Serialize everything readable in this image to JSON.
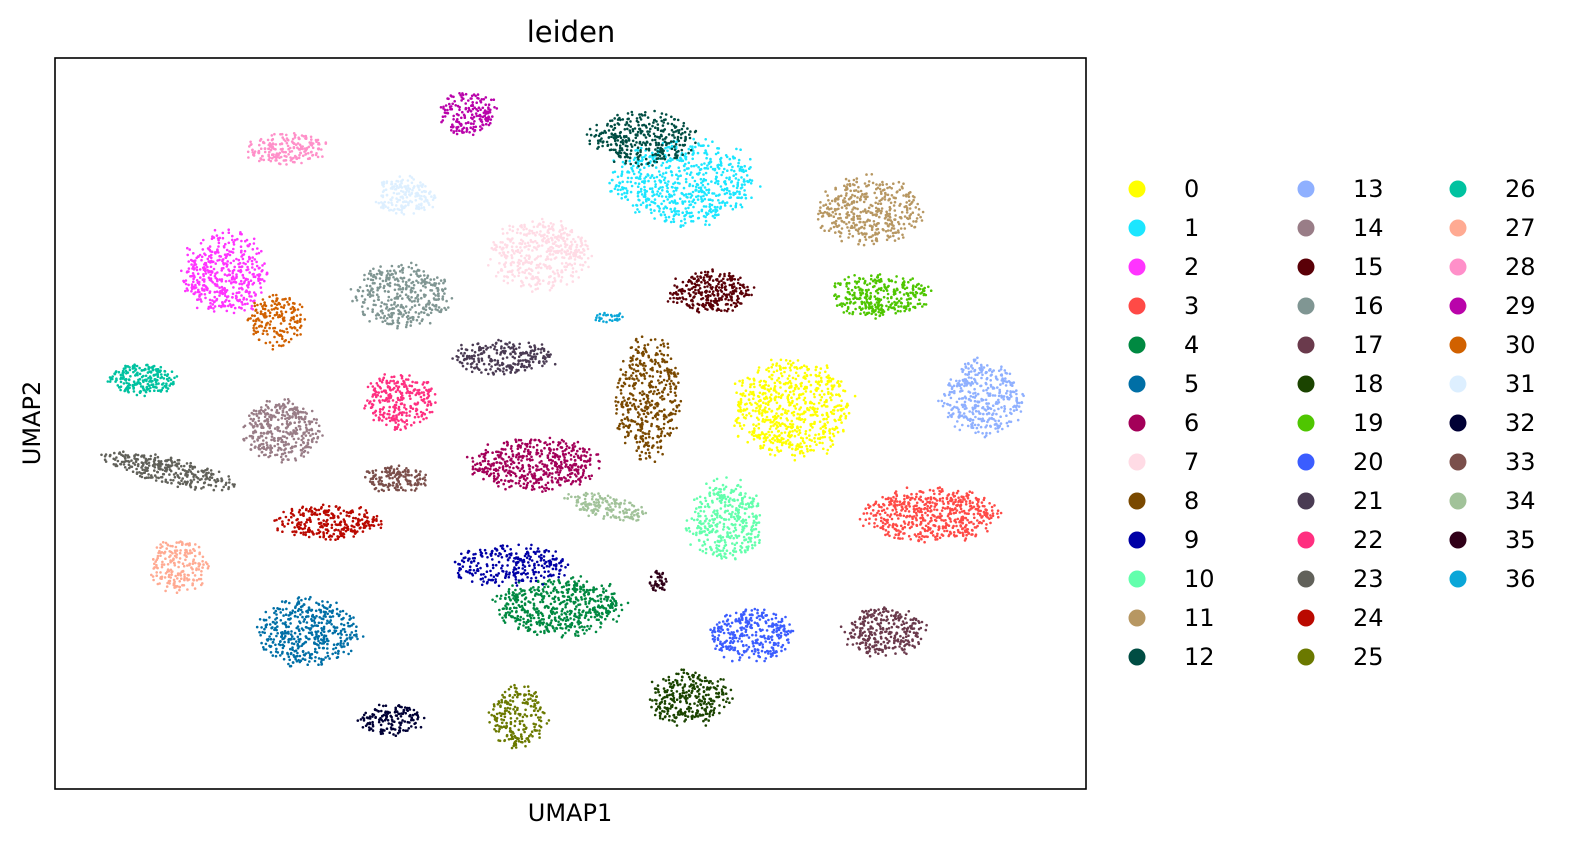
{
  "chart_data": {
    "type": "scatter",
    "title": "leiden",
    "xlabel": "UMAP1",
    "ylabel": "UMAP2",
    "xlim": [
      0,
      100
    ],
    "ylim": [
      0,
      100
    ],
    "grid": false,
    "legend_placement": "right",
    "legend_columns": 3,
    "series": [
      {
        "name": "0",
        "color": "#ffff00",
        "center": [
          71.5,
          52.0
        ],
        "spread": [
          5.5,
          6.5
        ],
        "shape": "ellipse",
        "n": 700
      },
      {
        "name": "1",
        "color": "#1ce6ff",
        "center": [
          61.0,
          83.0
        ],
        "spread": [
          7.0,
          5.5
        ],
        "shape": "ellipse",
        "n": 650
      },
      {
        "name": "2",
        "color": "#ff34ff",
        "center": [
          16.5,
          70.5
        ],
        "spread": [
          4.0,
          5.5
        ],
        "shape": "ellipse",
        "n": 450
      },
      {
        "name": "3",
        "color": "#ff4a46",
        "center": [
          85.0,
          37.5
        ],
        "spread": [
          6.5,
          3.5
        ],
        "shape": "ellipse",
        "n": 550
      },
      {
        "name": "4",
        "color": "#008941",
        "center": [
          49.0,
          25.0
        ],
        "spread": [
          6.0,
          3.8
        ],
        "shape": "ellipse",
        "n": 550
      },
      {
        "name": "5",
        "color": "#006fa6",
        "center": [
          24.5,
          21.5
        ],
        "spread": [
          4.8,
          4.5
        ],
        "shape": "ellipse",
        "n": 450
      },
      {
        "name": "6",
        "color": "#a30059",
        "center": [
          46.5,
          44.5
        ],
        "spread": [
          6.0,
          3.5
        ],
        "shape": "ellipse",
        "n": 500
      },
      {
        "name": "7",
        "color": "#ffdbe5",
        "center": [
          47.0,
          73.0
        ],
        "spread": [
          4.8,
          4.5
        ],
        "shape": "ellipse",
        "n": 450
      },
      {
        "name": "8",
        "color": "#7a4900",
        "center": [
          57.5,
          53.5
        ],
        "spread": [
          3.0,
          8.0
        ],
        "shape": "ellipse",
        "n": 450
      },
      {
        "name": "9",
        "color": "#0000a6",
        "center": [
          44.0,
          30.5
        ],
        "spread": [
          5.5,
          2.8
        ],
        "shape": "ellipse",
        "n": 280
      },
      {
        "name": "10",
        "color": "#63ffac",
        "center": [
          65.0,
          36.5
        ],
        "spread": [
          3.5,
          5.5
        ],
        "shape": "ellipse",
        "n": 380
      },
      {
        "name": "11",
        "color": "#b79762",
        "center": [
          79.0,
          79.0
        ],
        "spread": [
          4.8,
          4.5
        ],
        "shape": "ellipse",
        "n": 420
      },
      {
        "name": "12",
        "color": "#004d43",
        "center": [
          57.0,
          89.0
        ],
        "spread": [
          5.0,
          3.5
        ],
        "shape": "ellipse",
        "n": 350
      },
      {
        "name": "13",
        "color": "#8fb0ff",
        "center": [
          90.0,
          53.5
        ],
        "spread": [
          3.8,
          5.0
        ],
        "shape": "ellipse",
        "n": 380
      },
      {
        "name": "14",
        "color": "#997d87",
        "center": [
          22.0,
          49.0
        ],
        "spread": [
          3.5,
          4.0
        ],
        "shape": "ellipse",
        "n": 380
      },
      {
        "name": "15",
        "color": "#5a0007",
        "center": [
          63.5,
          68.0
        ],
        "spread": [
          4.0,
          2.8
        ],
        "shape": "ellipse",
        "n": 300
      },
      {
        "name": "16",
        "color": "#809693",
        "center": [
          33.5,
          67.5
        ],
        "spread": [
          4.5,
          4.2
        ],
        "shape": "ellipse",
        "n": 380
      },
      {
        "name": "17",
        "color": "#6a3a4c",
        "center": [
          80.5,
          21.5
        ],
        "spread": [
          3.8,
          3.2
        ],
        "shape": "ellipse",
        "n": 300
      },
      {
        "name": "18",
        "color": "#1b4400",
        "center": [
          61.5,
          12.5
        ],
        "spread": [
          3.8,
          3.6
        ],
        "shape": "ellipse",
        "n": 320
      },
      {
        "name": "19",
        "color": "#4fc601",
        "center": [
          80.0,
          67.5
        ],
        "spread": [
          4.8,
          2.8
        ],
        "shape": "ellipse",
        "n": 320
      },
      {
        "name": "20",
        "color": "#3b5dff",
        "center": [
          67.5,
          21.0
        ],
        "spread": [
          4.0,
          3.5
        ],
        "shape": "ellipse",
        "n": 320
      },
      {
        "name": "21",
        "color": "#4a3b53",
        "center": [
          43.5,
          59.0
        ],
        "spread": [
          5.0,
          2.2
        ],
        "shape": "ellipse",
        "n": 250
      },
      {
        "name": "22",
        "color": "#ff2f80",
        "center": [
          33.5,
          53.0
        ],
        "spread": [
          3.4,
          3.6
        ],
        "shape": "ellipse",
        "n": 280
      },
      {
        "name": "23",
        "color": "#61615a",
        "center": [
          11.0,
          43.5
        ],
        "spread": [
          6.0,
          1.8
        ],
        "shape": "band",
        "n": 300
      },
      {
        "name": "24",
        "color": "#ba0900",
        "center": [
          26.5,
          36.5
        ],
        "spread": [
          5.0,
          2.2
        ],
        "shape": "ellipse",
        "n": 280
      },
      {
        "name": "25",
        "color": "#6b7900",
        "center": [
          45.0,
          10.0
        ],
        "spread": [
          2.6,
          4.2
        ],
        "shape": "ellipse",
        "n": 220
      },
      {
        "name": "26",
        "color": "#00c2a0",
        "center": [
          8.5,
          56.0
        ],
        "spread": [
          3.4,
          2.0
        ],
        "shape": "ellipse",
        "n": 220
      },
      {
        "name": "27",
        "color": "#ffaa92",
        "center": [
          12.0,
          30.5
        ],
        "spread": [
          2.8,
          3.5
        ],
        "shape": "ellipse",
        "n": 200
      },
      {
        "name": "28",
        "color": "#ff90c9",
        "center": [
          22.5,
          87.5
        ],
        "spread": [
          3.8,
          2.0
        ],
        "shape": "ellipse",
        "n": 200
      },
      {
        "name": "29",
        "color": "#b903aa",
        "center": [
          40.0,
          92.5
        ],
        "spread": [
          2.8,
          2.8
        ],
        "shape": "ellipse",
        "n": 180
      },
      {
        "name": "30",
        "color": "#d16100",
        "center": [
          21.5,
          64.0
        ],
        "spread": [
          2.6,
          3.5
        ],
        "shape": "ellipse",
        "n": 180
      },
      {
        "name": "31",
        "color": "#ddefff",
        "center": [
          34.0,
          81.0
        ],
        "spread": [
          2.8,
          2.6
        ],
        "shape": "ellipse",
        "n": 180
      },
      {
        "name": "32",
        "color": "#000035",
        "center": [
          32.5,
          9.5
        ],
        "spread": [
          3.0,
          2.2
        ],
        "shape": "ellipse",
        "n": 150
      },
      {
        "name": "33",
        "color": "#7b4f4b",
        "center": [
          33.0,
          42.5
        ],
        "spread": [
          3.0,
          1.8
        ],
        "shape": "ellipse",
        "n": 160
      },
      {
        "name": "34",
        "color": "#a1c299",
        "center": [
          53.5,
          38.5
        ],
        "spread": [
          3.8,
          1.6
        ],
        "shape": "band",
        "n": 160
      },
      {
        "name": "35",
        "color": "#300018",
        "center": [
          58.5,
          28.5
        ],
        "spread": [
          0.9,
          1.4
        ],
        "shape": "ellipse",
        "n": 40
      },
      {
        "name": "36",
        "color": "#0aa6d8",
        "center": [
          53.8,
          64.5
        ],
        "spread": [
          1.5,
          0.7
        ],
        "shape": "ellipse",
        "n": 30
      }
    ]
  }
}
